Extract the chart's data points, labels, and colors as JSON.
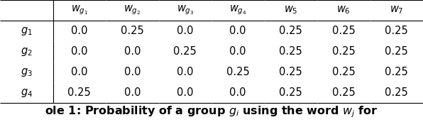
{
  "col_headers": [
    "$w_{g_1}$",
    "$w_{g_2}$",
    "$w_{g_3}$",
    "$w_{g_4}$",
    "$w_5$",
    "$w_6$",
    "$w_7$"
  ],
  "row_headers": [
    "$g_1$",
    "$g_2$",
    "$g_3$",
    "$g_4$"
  ],
  "table_data": [
    [
      "0.0",
      "0.25",
      "0.0",
      "0.0",
      "0.25",
      "0.25",
      "0.25"
    ],
    [
      "0.0",
      "0.0",
      "0.25",
      "0.0",
      "0.25",
      "0.25",
      "0.25"
    ],
    [
      "0.0",
      "0.0",
      "0.0",
      "0.25",
      "0.25",
      "0.25",
      "0.25"
    ],
    [
      "0.25",
      "0.0",
      "0.0",
      "0.0",
      "0.25",
      "0.25",
      "0.25"
    ]
  ],
  "caption": "ole 1: Probability of a group $g_i$ using the word $w_j$ for",
  "background_color": "#ffffff",
  "header_fontsize": 10.5,
  "cell_fontsize": 10.5,
  "caption_fontsize": 11.5
}
